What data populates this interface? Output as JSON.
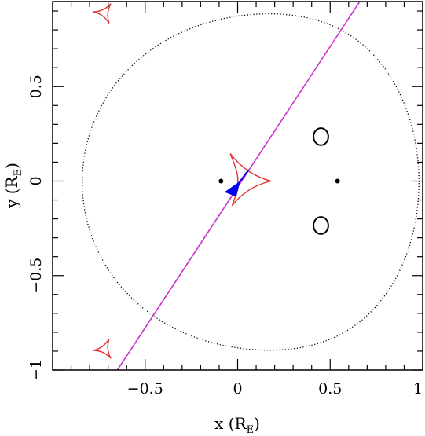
{
  "chart_data": {
    "type": "scatter",
    "title": "",
    "xlabel": {
      "main": "x (R",
      "sub": "E",
      "close": ")"
    },
    "ylabel": {
      "main": "y (R",
      "sub": "E",
      "close": ")"
    },
    "xlim": [
      -1.0,
      1.0
    ],
    "ylim": [
      -1.0,
      0.95
    ],
    "grid": false,
    "xticks": [
      {
        "value": -0.5,
        "label": "−0.5"
      },
      {
        "value": 0,
        "label": "0"
      },
      {
        "value": 0.5,
        "label": "0.5"
      },
      {
        "value": 1,
        "label": "1"
      }
    ],
    "yticks": [
      {
        "value": -1,
        "label": "−1"
      },
      {
        "value": -0.5,
        "label": "−0.5"
      },
      {
        "value": 0,
        "label": "0"
      },
      {
        "value": 0.5,
        "label": "0.5"
      }
    ],
    "lens_positions": [
      {
        "x": -0.09,
        "y": 0.0
      },
      {
        "x": 0.54,
        "y": 0.0
      }
    ],
    "central_caustic": {
      "x": [
        -0.04,
        0.18,
        -0.03,
        0.0
      ],
      "y": [
        0.145,
        0.0,
        -0.13,
        0.0
      ]
    },
    "planetary_caustics": [
      {
        "cx": -0.72,
        "cy": 0.89,
        "r": 0.06
      },
      {
        "cx": -0.72,
        "cy": -0.89,
        "r": 0.06
      }
    ],
    "images": [
      {
        "cx": 0.45,
        "cy": 0.235,
        "rx": 0.04,
        "ry": 0.045
      },
      {
        "cx": 0.45,
        "cy": -0.235,
        "rx": 0.04,
        "ry": 0.045
      }
    ],
    "source_trajectory": {
      "x": [
        -0.65,
        0.68
      ],
      "y": [
        -1.0,
        0.98
      ]
    },
    "source_star": {
      "x": -0.02,
      "y": -0.05
    },
    "critical_curve": "dotted",
    "colors": {
      "trajectory": "#cc33cc",
      "caustic": "#e03030",
      "source": "#0000ee",
      "critical_curve": "#000000",
      "axes": "#000000"
    }
  }
}
